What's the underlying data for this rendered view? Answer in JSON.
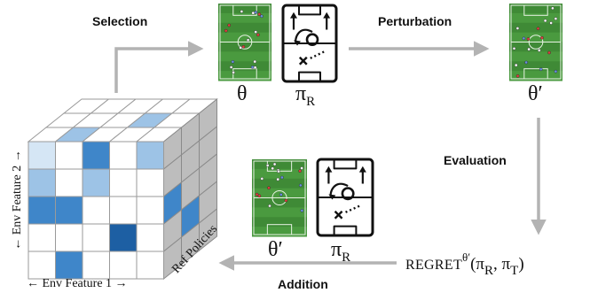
{
  "steps": {
    "selection": "Selection",
    "perturbation": "Perturbation",
    "evaluation": "Evaluation",
    "addition": "Addition"
  },
  "symbols": {
    "theta": "θ",
    "theta_prime": "θ′",
    "pi": "π",
    "ref_sub": "R",
    "regret_word": "Regret",
    "regret_sup": "θ′",
    "regret_args_open": "(π",
    "regret_args_mid": ", π",
    "target_sub": "T",
    "regret_args_close": ")"
  },
  "axes": {
    "env_feature_1": "← Env Feature 1 →",
    "env_feature_2": "← Env Feature 2 →",
    "ref_policies": "Ref Policies"
  },
  "icons": [
    "football-pitch-icon",
    "tactics-board-icon",
    "arrow-icon"
  ],
  "colors": {
    "pitch_green": "#3f8a36",
    "pitch_stripe": "#4a9a3f",
    "cell_dark": "#1d5fa3",
    "cell_mid": "#3f86c9",
    "cell_light": "#9dc3e6",
    "cell_pale": "#d5e6f5",
    "arrow_gray": "#b3b3b3"
  }
}
